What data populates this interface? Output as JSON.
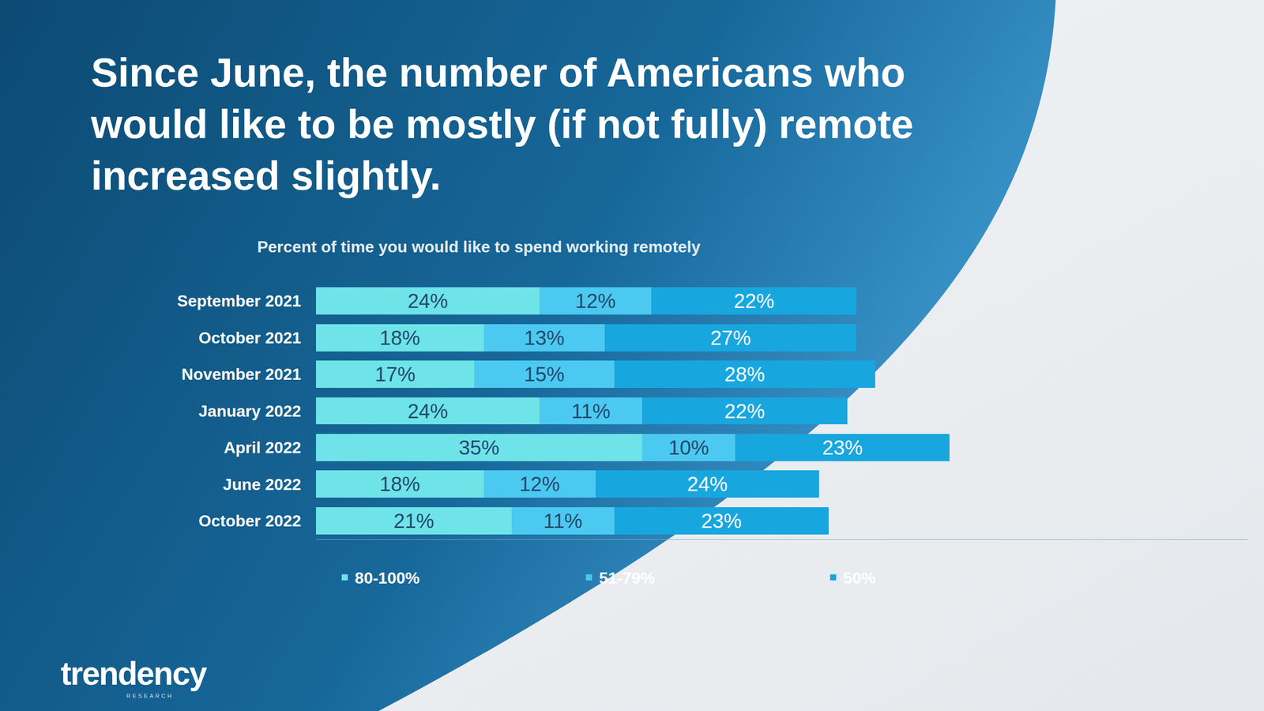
{
  "chart_data": {
    "type": "bar",
    "title": "Since June, the number of Americans who would like to be mostly (if not fully) remote increased slightly.",
    "subtitle": "Percent of time you would like to spend working remotely",
    "orientation": "horizontal",
    "stacked": true,
    "data_labels": true,
    "tick_labels": "y",
    "grid": false,
    "legend": "bottom",
    "xlim": [
      0,
      100
    ],
    "categories": [
      "September 2021",
      "October 2021",
      "November 2021",
      "January 2022",
      "April 2022",
      "June 2022",
      "October 2022"
    ],
    "series": [
      {
        "name": "80-100%",
        "color": "#6ee3e8",
        "values": [
          24,
          18,
          17,
          24,
          35,
          18,
          21
        ],
        "value_labels": [
          "24%",
          "18%",
          "17%",
          "24%",
          "35%",
          "18%",
          "21%"
        ]
      },
      {
        "name": "51-79%",
        "color": "#4cc9f0",
        "values": [
          12,
          13,
          15,
          11,
          10,
          12,
          11
        ],
        "value_labels": [
          "12%",
          "13%",
          "15%",
          "11%",
          "10%",
          "12%",
          "11%"
        ]
      },
      {
        "name": "50%",
        "color": "#18a6df",
        "values": [
          22,
          27,
          28,
          22,
          23,
          24,
          23
        ],
        "value_labels": [
          "22%",
          "27%",
          "28%",
          "22%",
          "23%",
          "24%",
          "23%"
        ]
      }
    ],
    "annotations": [
      "trendency",
      "RESEARCH"
    ]
  }
}
